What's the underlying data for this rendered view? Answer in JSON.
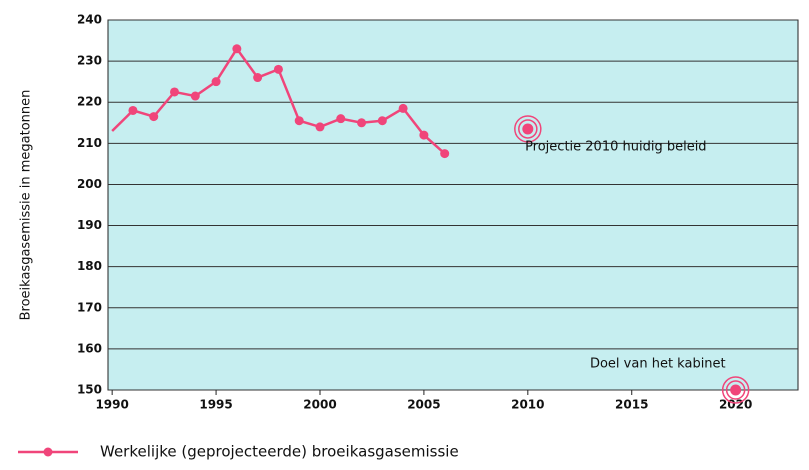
{
  "chart_data": {
    "type": "line",
    "ylabel": "Broeikasgasemissie in megatonnen",
    "x": [
      1990,
      1991,
      1992,
      1993,
      1994,
      1995,
      1996,
      1997,
      1998,
      1999,
      2000,
      2001,
      2002,
      2003,
      2004,
      2005,
      2006
    ],
    "series": [
      {
        "name": "Werkelijke (geprojecteerde) broeikasgasemissie",
        "color": "#f0457a",
        "values": [
          213,
          218,
          216.5,
          222.5,
          221.5,
          225,
          233,
          226,
          228,
          215.5,
          214,
          216,
          215,
          215.5,
          218.5,
          212,
          207.5
        ]
      }
    ],
    "targets": [
      {
        "text": "Projectie 2010 huidig beleid",
        "x": 2010,
        "y": 213.5
      },
      {
        "text": "Doel van het kabinet",
        "x": 2020,
        "y": 150
      }
    ],
    "xlim": [
      1989.8,
      2023
    ],
    "xticks": [
      1990,
      1995,
      2000,
      2005,
      2010,
      2015,
      2020
    ],
    "ylim": [
      150,
      240
    ],
    "yticks": [
      150,
      160,
      170,
      180,
      190,
      200,
      210,
      220,
      230,
      240
    ],
    "grid": true,
    "background": "#c6eef0"
  }
}
